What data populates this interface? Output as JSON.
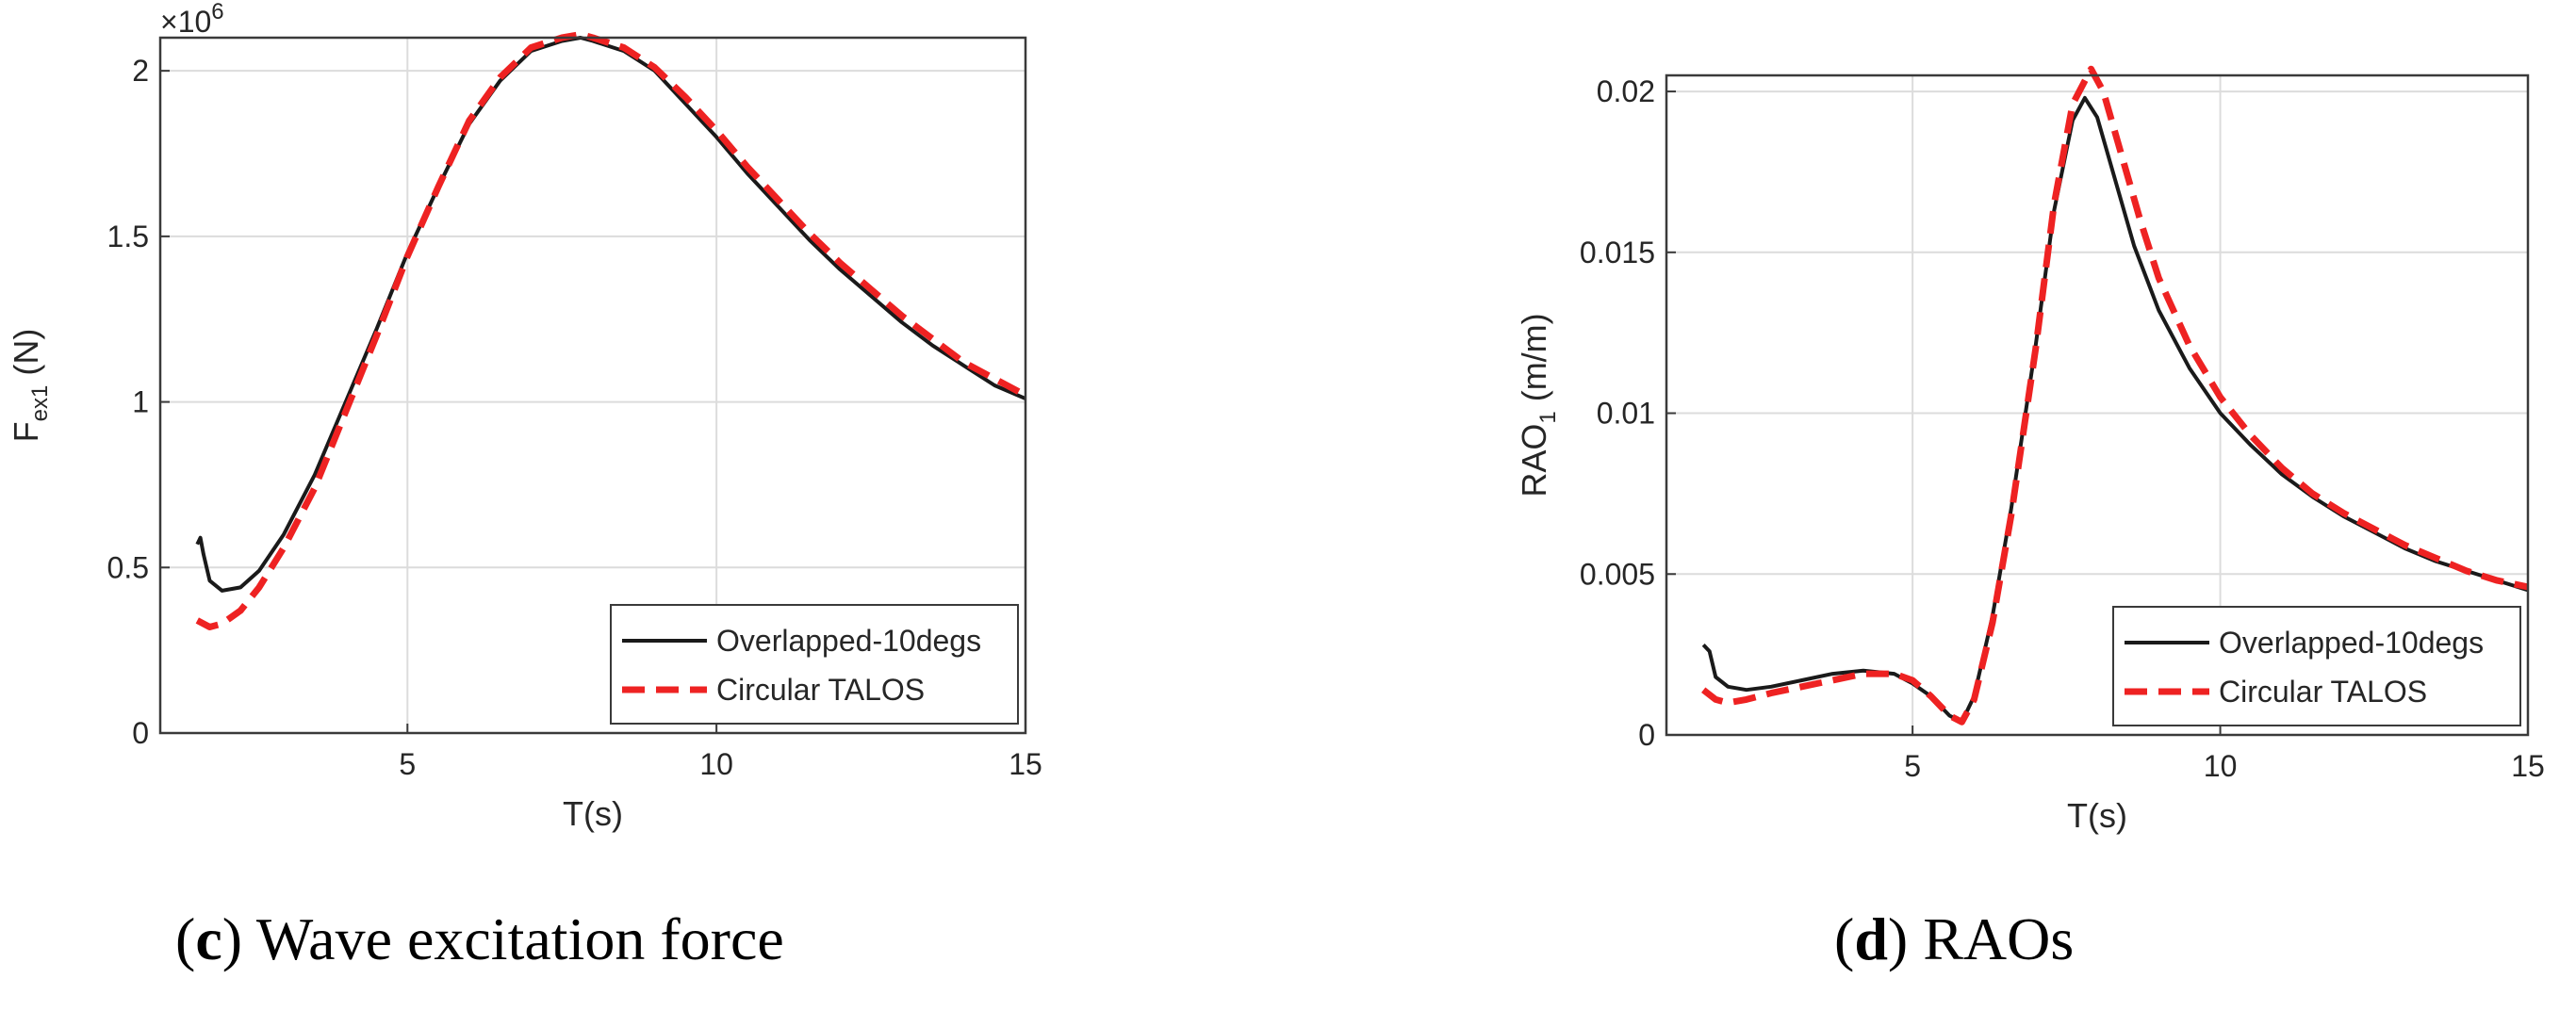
{
  "chart_data": [
    {
      "type": "line",
      "caption": {
        "label": "c",
        "text": " Wave excitation force"
      },
      "xlabel": "T(s)",
      "ylabel_main": "F",
      "ylabel_sub": "ex1",
      "ylabel_unit": " (N)",
      "y_exponent_label": "×10",
      "y_exponent_power": "6",
      "xlim": [
        1,
        15
      ],
      "ylim": [
        0,
        2.1
      ],
      "xticks": [
        5,
        10,
        15
      ],
      "yticks": [
        0,
        0.5,
        1,
        1.5,
        2
      ],
      "ytick_labels": [
        "0",
        "0.5",
        "1",
        "1.5",
        "2"
      ],
      "grid": true,
      "legend_position": "bottom-right",
      "series": [
        {
          "name": "Overlapped-10degs",
          "color": "#1a1a1a",
          "style": "solid",
          "x": [
            1.6,
            1.65,
            1.7,
            1.8,
            2.0,
            2.3,
            2.6,
            3.0,
            3.5,
            4.0,
            4.5,
            5.0,
            5.5,
            6.0,
            6.5,
            7.0,
            7.5,
            7.8,
            8.0,
            8.5,
            9.0,
            9.5,
            10.0,
            10.5,
            11.0,
            11.5,
            12.0,
            12.5,
            13.0,
            13.5,
            14.0,
            14.5,
            15.0
          ],
          "y": [
            0.57,
            0.59,
            0.54,
            0.46,
            0.43,
            0.44,
            0.49,
            0.6,
            0.78,
            1.0,
            1.22,
            1.45,
            1.65,
            1.84,
            1.97,
            2.06,
            2.09,
            2.1,
            2.09,
            2.06,
            2.0,
            1.9,
            1.8,
            1.69,
            1.59,
            1.49,
            1.4,
            1.32,
            1.24,
            1.17,
            1.11,
            1.05,
            1.01
          ]
        },
        {
          "name": "Circular TALOS",
          "color": "#ee2222",
          "style": "dashed",
          "x": [
            1.6,
            1.8,
            2.0,
            2.3,
            2.6,
            3.0,
            3.5,
            4.0,
            4.5,
            5.0,
            5.5,
            6.0,
            6.5,
            7.0,
            7.5,
            7.8,
            8.0,
            8.5,
            9.0,
            9.5,
            10.0,
            10.5,
            11.0,
            11.5,
            12.0,
            12.5,
            13.0,
            13.5,
            14.0,
            14.5,
            15.0
          ],
          "y": [
            0.34,
            0.32,
            0.33,
            0.37,
            0.44,
            0.56,
            0.74,
            0.97,
            1.2,
            1.44,
            1.65,
            1.85,
            1.98,
            2.07,
            2.1,
            2.11,
            2.1,
            2.07,
            2.01,
            1.92,
            1.82,
            1.71,
            1.61,
            1.51,
            1.42,
            1.34,
            1.26,
            1.19,
            1.12,
            1.07,
            1.02
          ]
        }
      ]
    },
    {
      "type": "line",
      "caption": {
        "label": "d",
        "text": " RAOs"
      },
      "xlabel": "T(s)",
      "ylabel_main": "RAO",
      "ylabel_sub": "1",
      "ylabel_unit": "  (m/m)",
      "xlim": [
        1,
        15
      ],
      "ylim": [
        0,
        0.0205
      ],
      "xticks": [
        5,
        10,
        15
      ],
      "yticks": [
        0,
        0.005,
        0.01,
        0.015,
        0.02
      ],
      "ytick_labels": [
        "0",
        "0.005",
        "0.01",
        "0.015",
        "0.02"
      ],
      "grid": true,
      "legend_position": "bottom-right",
      "series": [
        {
          "name": "Overlapped-10degs",
          "color": "#1a1a1a",
          "style": "solid",
          "x": [
            1.6,
            1.7,
            1.8,
            2.0,
            2.3,
            2.7,
            3.2,
            3.7,
            4.2,
            4.7,
            5.0,
            5.3,
            5.6,
            5.8,
            6.0,
            6.3,
            6.6,
            7.0,
            7.3,
            7.6,
            7.8,
            8.0,
            8.3,
            8.6,
            9.0,
            9.5,
            10.0,
            10.5,
            11.0,
            11.5,
            12.0,
            12.5,
            13.0,
            13.5,
            14.0,
            14.5,
            15.0
          ],
          "y": [
            0.0028,
            0.0026,
            0.0018,
            0.0015,
            0.0014,
            0.0015,
            0.0017,
            0.0019,
            0.002,
            0.0019,
            0.0016,
            0.0012,
            0.0006,
            0.0004,
            0.0012,
            0.0037,
            0.007,
            0.0121,
            0.0163,
            0.0191,
            0.0198,
            0.0192,
            0.0172,
            0.0152,
            0.0132,
            0.0114,
            0.01,
            0.009,
            0.0081,
            0.0074,
            0.0068,
            0.0063,
            0.0058,
            0.0054,
            0.0051,
            0.0048,
            0.0045
          ]
        },
        {
          "name": "Circular TALOS",
          "color": "#ee2222",
          "style": "dashed",
          "x": [
            1.6,
            1.8,
            2.0,
            2.3,
            2.7,
            3.2,
            3.7,
            4.2,
            4.7,
            5.0,
            5.3,
            5.6,
            5.8,
            6.0,
            6.3,
            6.6,
            7.0,
            7.3,
            7.6,
            7.9,
            8.1,
            8.4,
            8.7,
            9.0,
            9.5,
            10.0,
            10.5,
            11.0,
            11.5,
            12.0,
            12.5,
            13.0,
            13.5,
            14.0,
            14.5,
            15.0
          ],
          "y": [
            0.0014,
            0.0011,
            0.001,
            0.0011,
            0.0013,
            0.0015,
            0.0017,
            0.0019,
            0.0019,
            0.0017,
            0.0012,
            0.0006,
            0.0004,
            0.0011,
            0.0035,
            0.0068,
            0.012,
            0.0165,
            0.0196,
            0.0207,
            0.02,
            0.018,
            0.016,
            0.0142,
            0.0121,
            0.0105,
            0.0093,
            0.0083,
            0.0075,
            0.0069,
            0.0064,
            0.0059,
            0.0055,
            0.0051,
            0.0048,
            0.0046
          ]
        }
      ]
    }
  ]
}
